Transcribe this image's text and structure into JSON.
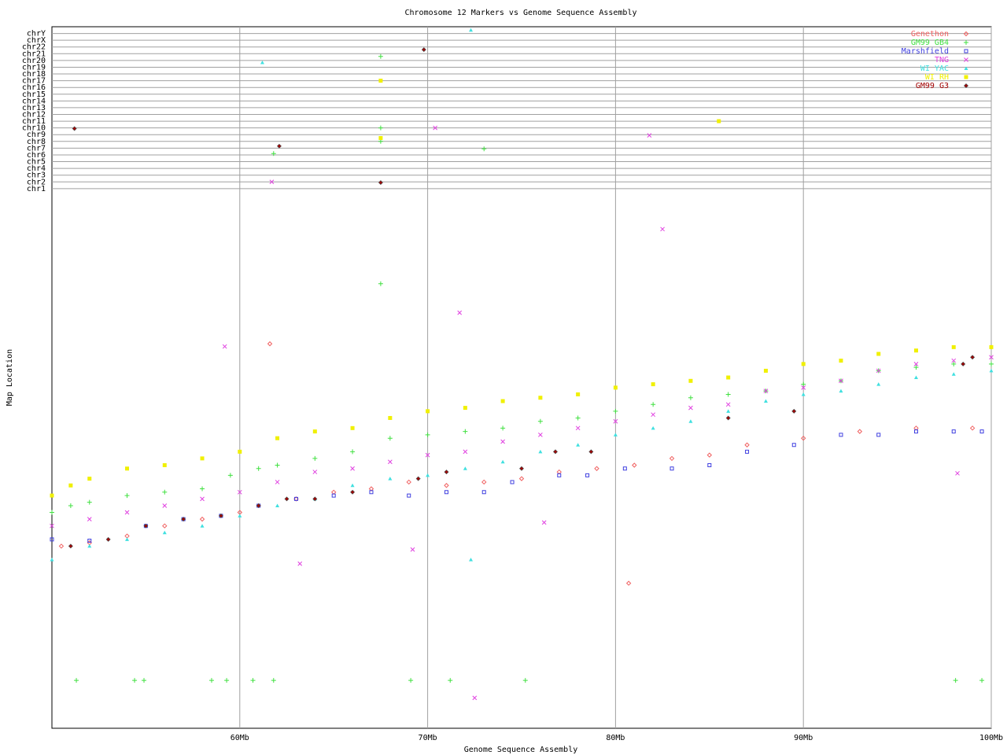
{
  "chart_data": {
    "type": "scatter",
    "title": "Chromosome 12 Markers vs Genome Sequence Assembly",
    "xlabel": "Genome Sequence Assembly",
    "ylabel": "Map Location",
    "xlim": [
      50,
      100
    ],
    "xticks": [
      {
        "value": 60,
        "label": "60Mb"
      },
      {
        "value": 70,
        "label": "70Mb"
      },
      {
        "value": 80,
        "label": "80Mb"
      },
      {
        "value": 90,
        "label": "90Mb"
      },
      {
        "value": 100,
        "label": "100Mb"
      }
    ],
    "ylim": [
      0,
      104
    ],
    "yticks": [
      {
        "value": 80,
        "label": "chr1"
      },
      {
        "value": 81,
        "label": "chr2"
      },
      {
        "value": 82,
        "label": "chr3"
      },
      {
        "value": 83,
        "label": "chr4"
      },
      {
        "value": 84,
        "label": "chr5"
      },
      {
        "value": 85,
        "label": "chr6"
      },
      {
        "value": 86,
        "label": "chr7"
      },
      {
        "value": 87,
        "label": "chr8"
      },
      {
        "value": 88,
        "label": "chr9"
      },
      {
        "value": 89,
        "label": "chr10"
      },
      {
        "value": 90,
        "label": "chr11"
      },
      {
        "value": 91,
        "label": "chr12"
      },
      {
        "value": 92,
        "label": "chr13"
      },
      {
        "value": 93,
        "label": "chr14"
      },
      {
        "value": 94,
        "label": "chr15"
      },
      {
        "value": 95,
        "label": "chr16"
      },
      {
        "value": 96,
        "label": "chr17"
      },
      {
        "value": 97,
        "label": "chr18"
      },
      {
        "value": 98,
        "label": "chr19"
      },
      {
        "value": 99,
        "label": "chr20"
      },
      {
        "value": 100,
        "label": "chr21"
      },
      {
        "value": 101,
        "label": "chr22"
      },
      {
        "value": 102,
        "label": "chrX"
      },
      {
        "value": 103,
        "label": "chrY"
      }
    ],
    "grid": true,
    "legend": "upper right",
    "series": [
      {
        "name": "Genethon",
        "color": "#f06060",
        "marker": "diamond",
        "x": [
          50.5,
          52,
          54,
          56,
          58,
          60,
          61,
          63,
          65,
          67,
          69,
          71,
          73,
          75,
          77,
          79,
          81,
          83,
          85,
          87,
          90,
          93,
          96,
          99,
          80.7,
          61.6
        ],
        "y": [
          27,
          27.5,
          28.5,
          30,
          31,
          32,
          33,
          34,
          35,
          35.5,
          36.5,
          36,
          36.5,
          37,
          38,
          38.5,
          39,
          40,
          40.5,
          42,
          43,
          44,
          44.5,
          44.5,
          21.5,
          57
        ]
      },
      {
        "name": "GM99 GB4",
        "color": "#40e040",
        "marker": "plus",
        "x": [
          50,
          51,
          52,
          54,
          56,
          58,
          59.5,
          61,
          62,
          64,
          66,
          68,
          70,
          72,
          74,
          76,
          78,
          80,
          82,
          84,
          86,
          88,
          90,
          92,
          94,
          96,
          98,
          100,
          51.3,
          54.4,
          54.9,
          58.5,
          59.3,
          60.7,
          61.8,
          69.1,
          71.2,
          75.2,
          98.1,
          99.5,
          67.5,
          67.5,
          67.5,
          61.8,
          67.5,
          73
        ],
        "y": [
          32,
          33,
          33.5,
          34.5,
          35,
          35.5,
          37.5,
          38.5,
          39,
          40,
          41,
          43,
          43.5,
          44,
          44.5,
          45.5,
          46,
          47,
          48,
          49,
          49.5,
          50,
          51,
          51.5,
          53,
          53.5,
          54,
          54,
          7.1,
          7.1,
          7.1,
          7.1,
          7.1,
          7.1,
          7.1,
          7.1,
          7.1,
          7.1,
          7.1,
          7.1,
          99.6,
          89,
          87,
          85.2,
          65.9,
          85.9
        ]
      },
      {
        "name": "Marshfield",
        "color": "#4040e0",
        "marker": "square",
        "x": [
          50,
          52,
          55,
          57,
          59,
          61,
          63,
          65,
          67,
          69,
          71,
          73,
          74.5,
          77,
          78.5,
          80.5,
          83,
          85,
          87,
          89.5,
          92,
          94,
          96,
          98,
          99.5
        ],
        "y": [
          28,
          27.8,
          30,
          31,
          31.5,
          33,
          34,
          34.5,
          35,
          34.5,
          35,
          35,
          36.5,
          37.5,
          37.5,
          38.5,
          38.5,
          39,
          41,
          42,
          43.5,
          43.5,
          44,
          44,
          44
        ]
      },
      {
        "name": "TNG",
        "color": "#e040e0",
        "marker": "cross",
        "x": [
          50,
          52,
          54,
          56,
          58,
          60,
          62,
          64,
          66,
          68,
          70,
          72,
          74,
          76,
          78,
          80,
          82,
          84,
          86,
          88,
          90,
          92,
          94,
          96,
          98,
          100,
          59.2,
          71.7,
          82.5,
          63.2,
          69.2,
          72.5,
          76.2,
          98.2,
          61.7,
          70.4,
          81.8
        ],
        "y": [
          30,
          31,
          32,
          33,
          34,
          35,
          36.5,
          38,
          38.5,
          39.5,
          40.5,
          41,
          42.5,
          43.5,
          44.5,
          45.5,
          46.5,
          47.5,
          48,
          50,
          50.5,
          51.5,
          53,
          54,
          54.5,
          55,
          56.6,
          61.6,
          74,
          24.4,
          26.5,
          4.5,
          30.5,
          37.8,
          81,
          89,
          87.9
        ]
      },
      {
        "name": "WI YAC",
        "color": "#40e0e0",
        "marker": "triangle",
        "x": [
          50,
          52,
          54,
          56,
          58,
          60,
          62,
          64,
          66,
          68,
          70,
          72,
          74,
          76,
          78,
          80,
          82,
          84,
          86,
          88,
          90,
          92,
          94,
          96,
          98,
          100,
          72.3,
          61.2,
          72.3
        ],
        "y": [
          25,
          27,
          28,
          29,
          30,
          31.5,
          33,
          34,
          36,
          37,
          37.5,
          38.5,
          39.5,
          41,
          42,
          43.5,
          44.5,
          45.5,
          47,
          48.5,
          49.5,
          50,
          51,
          52,
          52.5,
          53,
          103.5,
          98.7,
          25
        ]
      },
      {
        "name": "WI RH",
        "color": "#f0f000",
        "marker": "filled-square",
        "x": [
          50,
          51,
          52,
          54,
          56,
          58,
          60,
          62,
          64,
          66,
          68,
          70,
          72,
          74,
          76,
          78,
          80,
          82,
          84,
          86,
          88,
          90,
          92,
          94,
          96,
          98,
          100,
          85.5,
          67.5,
          67.5
        ],
        "y": [
          34.5,
          36,
          37,
          38.5,
          39,
          40,
          41,
          43,
          44,
          44.5,
          46,
          47,
          47.5,
          48.5,
          49,
          49.5,
          50.5,
          51,
          51.5,
          52,
          53,
          54,
          54.5,
          55.5,
          56,
          56.5,
          56.5,
          90,
          87.5,
          96
        ]
      },
      {
        "name": "GM99 G3",
        "color": "#a00000",
        "marker": "filled-diamond",
        "x": [
          51,
          53,
          55,
          57,
          59,
          61,
          62.5,
          64,
          66,
          69.5,
          71,
          75,
          76.8,
          78.7,
          86,
          89.5,
          98.5,
          99,
          51.2,
          62.1,
          67.5,
          69.8
        ],
        "y": [
          27,
          28,
          30,
          31,
          31.5,
          33,
          34,
          34,
          35,
          37,
          38,
          38.5,
          41,
          41,
          46,
          47,
          54,
          55,
          88.9,
          86.3,
          80.9,
          100.6
        ]
      }
    ]
  }
}
